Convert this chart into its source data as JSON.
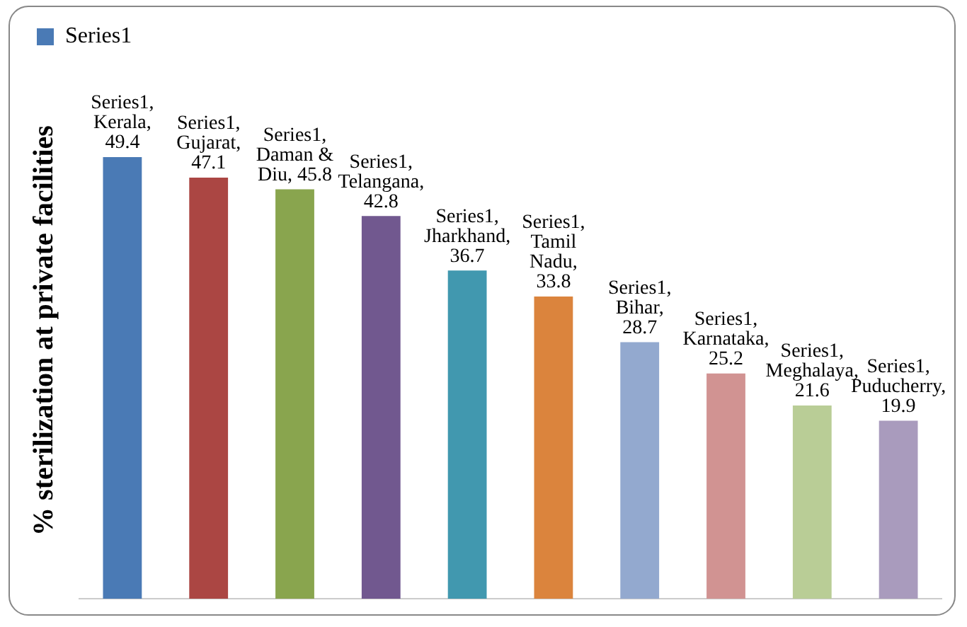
{
  "chart_data": {
    "type": "bar",
    "ylabel": "% sterilization at private facilities",
    "categories": [
      null,
      null,
      null,
      null,
      null,
      null,
      null,
      null,
      null,
      null
    ],
    "series": [
      {
        "name": "Series1",
        "values": [
          49.4,
          47.1,
          45.8,
          42.8,
          36.7,
          33.8,
          28.7,
          25.2,
          21.6,
          19.9
        ],
        "colors": [
          "#4a7ab5",
          "#ab4643",
          "#89a54e",
          "#71588f",
          "#4198af",
          "#db843d",
          "#93a9cf",
          "#d19392",
          "#b9cd96",
          "#a99bbd"
        ],
        "value_labels": [
          "Series1, Kerala, 49.4",
          "Series1, Gujarat, 47.1",
          "Series1, Daman & Diu, 45.8",
          "Series1, Telangana, 42.8",
          "Series1, Jharkhand, 36.7",
          "Series1, Tamil Nadu, 33.8",
          "Series1, Bihar, 28.7",
          "Series1, Karnataka, 25.2",
          "Series1, Meghalaya, 21.6",
          "Series1, Puducherry, 19.9"
        ]
      }
    ],
    "legend": "top left",
    "tick_labels": false,
    "grid": false
  }
}
